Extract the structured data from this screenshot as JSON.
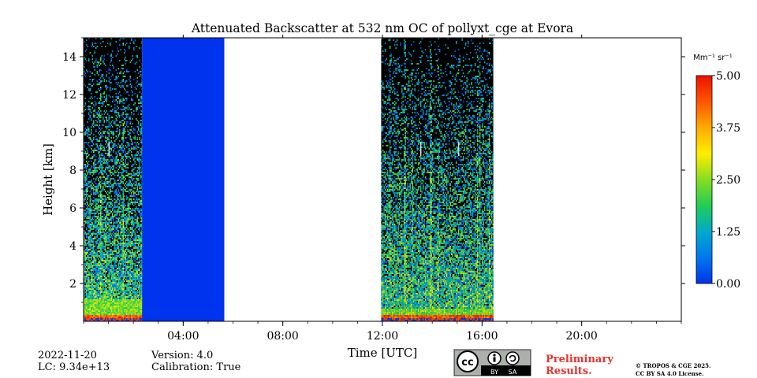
{
  "chart_data": {
    "type": "heatmap",
    "title": "Attenuated Backscatter at 532 nm OC of pollyxt_cge at Evora",
    "xlabel": "Time [UTC]",
    "ylabel": "Height [km]",
    "xlim_hours": [
      0,
      24
    ],
    "ylim_km": [
      0,
      15
    ],
    "xticks": [
      {
        "value": 4,
        "label": "04:00"
      },
      {
        "value": 8,
        "label": "08:00"
      },
      {
        "value": 12,
        "label": "12:00"
      },
      {
        "value": 16,
        "label": "16:00"
      },
      {
        "value": 20,
        "label": "20:00"
      }
    ],
    "yticks": [
      {
        "value": 2,
        "label": "2"
      },
      {
        "value": 4,
        "label": "4"
      },
      {
        "value": 6,
        "label": "6"
      },
      {
        "value": 8,
        "label": "8"
      },
      {
        "value": 10,
        "label": "10"
      },
      {
        "value": 12,
        "label": "12"
      },
      {
        "value": 14,
        "label": "14"
      }
    ],
    "colorbar": {
      "unit_label": "Mm⁻¹ sr⁻¹",
      "min": 0.0,
      "max": 5.0,
      "ticks": [
        {
          "value": 0.0,
          "label": "0.00"
        },
        {
          "value": 1.25,
          "label": "1.25"
        },
        {
          "value": 2.5,
          "label": "2.50"
        },
        {
          "value": 3.75,
          "label": "3.75"
        },
        {
          "value": 5.0,
          "label": "5.00"
        }
      ],
      "colors": [
        "#0033ee",
        "#0077ee",
        "#00aacc",
        "#22cc55",
        "#88dd22",
        "#ffee00",
        "#ffaa00",
        "#ff5500",
        "#ee1100"
      ]
    },
    "segments": [
      {
        "type": "measurement",
        "start_hour": 0.0,
        "end_hour": 2.35,
        "boundary_layer_top_km": 1.2
      },
      {
        "type": "constant_fill",
        "start_hour": 2.35,
        "end_hour": 5.65,
        "value": 0.0
      },
      {
        "type": "measurement",
        "start_hour": 11.95,
        "end_hour": 16.45,
        "boundary_layer_top_km": 0.7
      }
    ]
  },
  "footer": {
    "date": "2022-11-20",
    "lc": "LC: 9.34e+13",
    "version": "Version: 4.0",
    "calibration": "Calibration: True",
    "license_badge": {
      "by": "BY",
      "sa": "SA"
    },
    "preliminary": "Preliminary Results.",
    "copyright_line1": "© TROPOS & CGE 2025.",
    "copyright_line2": "CC BY SA 4.0 License."
  }
}
